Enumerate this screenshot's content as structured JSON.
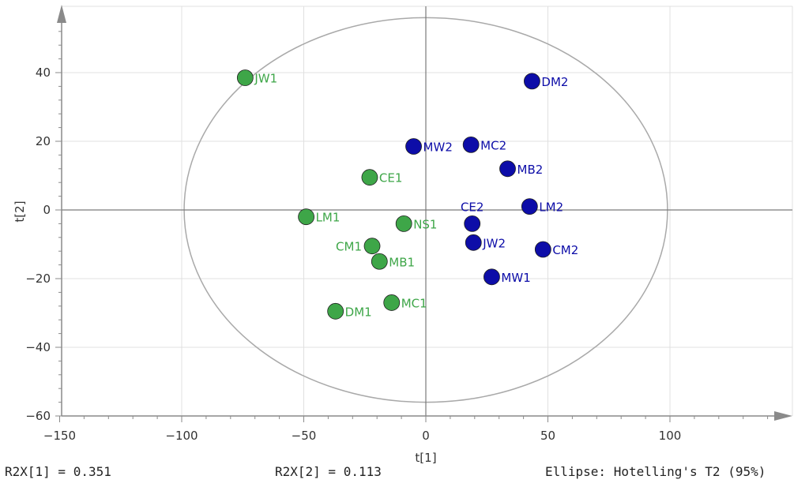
{
  "chart_data": {
    "type": "scatter",
    "xlabel": "t[1]",
    "ylabel": "t[2]",
    "xlim": [
      -150,
      150
    ],
    "ylim": [
      -60,
      60
    ],
    "x_ticks": [
      -150,
      -100,
      -50,
      0,
      50,
      100
    ],
    "y_ticks": [
      -60,
      -40,
      -20,
      0,
      20,
      40
    ],
    "grid": true,
    "ellipse": {
      "cx": 0,
      "cy": 0,
      "rx": 99,
      "ry": 56
    },
    "series": [
      {
        "color": "#3ea648",
        "points": [
          {
            "label": "JW1",
            "x": -74,
            "y": 38.5
          },
          {
            "label": "CE1",
            "x": -23,
            "y": 9.5
          },
          {
            "label": "LM1",
            "x": -49,
            "y": -2
          },
          {
            "label": "NS1",
            "x": -9,
            "y": -4
          },
          {
            "label": "CM1",
            "x": -22,
            "y": -10.5
          },
          {
            "label": "MB1",
            "x": -19,
            "y": -15
          },
          {
            "label": "DM1",
            "x": -37,
            "y": -29.5
          },
          {
            "label": "MC1",
            "x": -14,
            "y": -27
          }
        ]
      },
      {
        "color": "#0d0da8",
        "points": [
          {
            "label": "DM2",
            "x": 43.5,
            "y": 37.5
          },
          {
            "label": "MW2",
            "x": -5,
            "y": 18.5
          },
          {
            "label": "MC2",
            "x": 18.5,
            "y": 19
          },
          {
            "label": "MB2",
            "x": 33.5,
            "y": 12
          },
          {
            "label": "LM2",
            "x": 42.5,
            "y": 1
          },
          {
            "label": "CE2",
            "x": 19,
            "y": -4
          },
          {
            "label": "JW2",
            "x": 19.5,
            "y": -9.5
          },
          {
            "label": "CM2",
            "x": 48,
            "y": -11.5
          },
          {
            "label": "MW1",
            "x": 27,
            "y": -19.5
          }
        ]
      }
    ]
  },
  "footer": {
    "r2x1": "R2X[1] = 0.351",
    "r2x2": "R2X[2] = 0.113",
    "ellipse_note": "Ellipse: Hotelling's T2 (95%)"
  }
}
